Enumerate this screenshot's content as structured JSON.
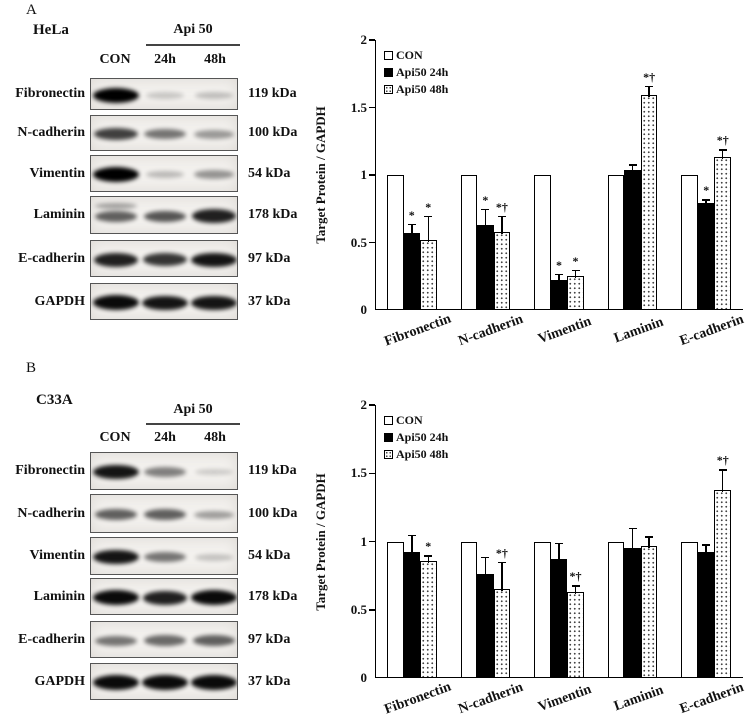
{
  "figure": {
    "background": "#ffffff",
    "ink_color": "#111111",
    "description_labels": {
      "kda_unit": "kDa"
    }
  },
  "panels": [
    {
      "label": "A",
      "cell_line": "HeLa",
      "treatment_header": "Api 50",
      "lane_headers": [
        "CON",
        "24h",
        "48h"
      ],
      "blots": [
        {
          "protein": "Fibronectin",
          "kda": "119 kDa",
          "bands": [
            1.0,
            0.06,
            0.1
          ]
        },
        {
          "protein": "N-cadherin",
          "kda": "100 kDa",
          "bands": [
            0.7,
            0.45,
            0.28
          ]
        },
        {
          "protein": "Vimentin",
          "kda": "54 kDa",
          "bands": [
            1.0,
            0.12,
            0.3
          ]
        },
        {
          "protein": "Laminin",
          "kda": "178 kDa",
          "bands": [
            0.55,
            0.6,
            0.85
          ],
          "double_band_lanes": [
            0
          ]
        },
        {
          "protein": "E-cadherin",
          "kda": "97 kDa",
          "bands": [
            0.85,
            0.75,
            0.9
          ]
        },
        {
          "protein": "GAPDH",
          "kda": "37 kDa",
          "bands": [
            0.95,
            0.9,
            0.9
          ]
        }
      ]
    },
    {
      "label": "B",
      "cell_line": "C33A",
      "treatment_header": "Api 50",
      "lane_headers": [
        "CON",
        "24h",
        "48h"
      ],
      "blots": [
        {
          "protein": "Fibronectin",
          "kda": "119 kDa",
          "bands": [
            0.9,
            0.4,
            0.04
          ]
        },
        {
          "protein": "N-cadherin",
          "kda": "100 kDa",
          "bands": [
            0.55,
            0.55,
            0.25
          ]
        },
        {
          "protein": "Vimentin",
          "kda": "54 kDa",
          "bands": [
            0.9,
            0.45,
            0.08
          ]
        },
        {
          "protein": "Laminin",
          "kda": "178 kDa",
          "bands": [
            0.95,
            0.85,
            0.95
          ]
        },
        {
          "protein": "E-cadherin",
          "kda": "97 kDa",
          "bands": [
            0.45,
            0.5,
            0.55
          ]
        },
        {
          "protein": "GAPDH",
          "kda": "37 kDa",
          "bands": [
            0.95,
            0.95,
            0.95
          ]
        }
      ]
    }
  ],
  "chart_data": [
    {
      "type": "bar",
      "panel": "A",
      "title": "",
      "xlabel": "",
      "ylabel": "Target Protein / GAPDH",
      "ylim": [
        0,
        2
      ],
      "yticks": [
        0,
        0.5,
        1,
        1.5,
        2
      ],
      "grid": false,
      "legend_position": "top-left-inside",
      "categories": [
        "Fibronectin",
        "N-cadherin",
        "Vimentin",
        "Laminin",
        "E-cadherin"
      ],
      "series": [
        {
          "name": "CON",
          "values": [
            1.0,
            1.0,
            1.0,
            1.0,
            1.0
          ],
          "errors": [
            0,
            0,
            0,
            0,
            0
          ],
          "sig": [
            "",
            "",
            "",
            "",
            ""
          ]
        },
        {
          "name": "Api50 24h",
          "values": [
            0.57,
            0.63,
            0.22,
            1.04,
            0.79
          ],
          "errors": [
            0.07,
            0.12,
            0.05,
            0.04,
            0.03
          ],
          "sig": [
            "*",
            "*",
            "*",
            "",
            "*"
          ]
        },
        {
          "name": "Api50 48h",
          "values": [
            0.52,
            0.58,
            0.25,
            1.59,
            1.13
          ],
          "errors": [
            0.18,
            0.12,
            0.05,
            0.07,
            0.06
          ],
          "sig": [
            "*",
            "*†",
            "*",
            "*†",
            "*†"
          ]
        }
      ]
    },
    {
      "type": "bar",
      "panel": "B",
      "title": "",
      "xlabel": "",
      "ylabel": "Target Protein / GAPDH",
      "ylim": [
        0,
        2
      ],
      "yticks": [
        0,
        0.5,
        1,
        1.5,
        2
      ],
      "grid": false,
      "legend_position": "top-left-inside",
      "categories": [
        "Fibronectin",
        "N-cadherin",
        "Vimentin",
        "Laminin",
        "E-cadherin"
      ],
      "series": [
        {
          "name": "CON",
          "values": [
            1.0,
            1.0,
            1.0,
            1.0,
            1.0
          ],
          "errors": [
            0,
            0,
            0,
            0,
            0
          ],
          "sig": [
            "",
            "",
            "",
            "",
            ""
          ]
        },
        {
          "name": "Api50 24h",
          "values": [
            0.92,
            0.76,
            0.87,
            0.95,
            0.92
          ],
          "errors": [
            0.13,
            0.13,
            0.12,
            0.15,
            0.06
          ],
          "sig": [
            "",
            "",
            "",
            "",
            ""
          ]
        },
        {
          "name": "Api50 48h",
          "values": [
            0.86,
            0.65,
            0.63,
            0.97,
            1.38
          ],
          "errors": [
            0.04,
            0.2,
            0.05,
            0.07,
            0.15
          ],
          "sig": [
            "*",
            "*†",
            "*†",
            "",
            "*†"
          ]
        }
      ]
    }
  ]
}
